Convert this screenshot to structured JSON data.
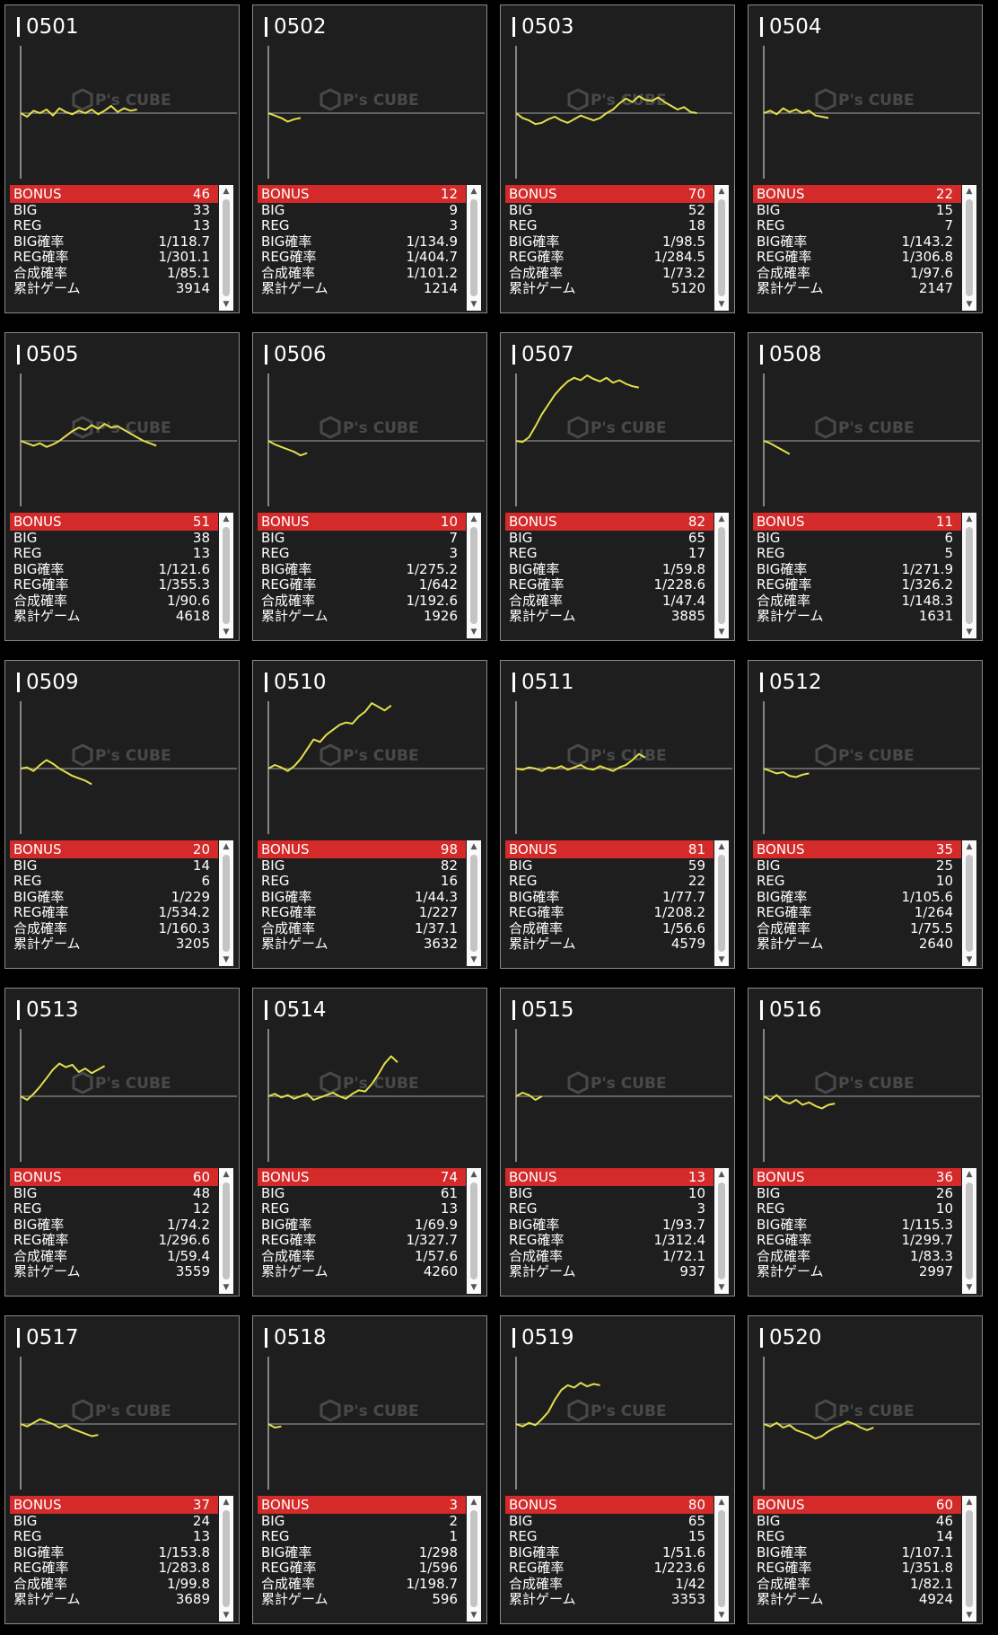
{
  "labels": {
    "bonus": "BONUS",
    "big": "BIG",
    "reg": "REG",
    "big_rate": "BIG確率",
    "reg_rate": "REG確率",
    "combined_rate": "合成確率",
    "total_games": "累計ゲーム",
    "watermark": "P's CUBE"
  },
  "colors": {
    "bonus_bar": "#d42a2a",
    "line": "#e5e04a",
    "baseline": "#8c8c8c",
    "axis": "#c8c8c8",
    "card_bg": "#1e1e1e"
  },
  "machines": [
    {
      "id": "0501",
      "bonus": "46",
      "big": "33",
      "reg": "13",
      "big_rate": "1/118.7",
      "reg_rate": "1/301.1",
      "combined_rate": "1/85.1",
      "games": "3914",
      "graph": [
        0,
        -3,
        2,
        0,
        3,
        -2,
        4,
        1,
        -1,
        2,
        0,
        3,
        -1,
        2,
        6,
        1,
        4,
        2,
        3
      ]
    },
    {
      "id": "0502",
      "bonus": "12",
      "big": "9",
      "reg": "3",
      "big_rate": "1/134.9",
      "reg_rate": "1/404.7",
      "combined_rate": "1/101.2",
      "games": "1214",
      "graph": [
        0,
        -2,
        -4,
        -7,
        -5,
        -4
      ]
    },
    {
      "id": "0503",
      "bonus": "70",
      "big": "52",
      "reg": "18",
      "big_rate": "1/98.5",
      "reg_rate": "1/284.5",
      "combined_rate": "1/73.2",
      "games": "5120",
      "graph": [
        0,
        -4,
        -6,
        -9,
        -8,
        -5,
        -3,
        -6,
        -8,
        -5,
        -2,
        -4,
        -6,
        -4,
        0,
        3,
        8,
        12,
        9,
        14,
        11,
        10,
        13,
        9,
        6,
        3,
        5,
        1,
        0
      ]
    },
    {
      "id": "0504",
      "bonus": "22",
      "big": "15",
      "reg": "7",
      "big_rate": "1/143.2",
      "reg_rate": "1/306.8",
      "combined_rate": "1/97.6",
      "games": "2147",
      "graph": [
        0,
        2,
        -1,
        4,
        1,
        3,
        0,
        2,
        -2,
        -3,
        -4
      ]
    },
    {
      "id": "0505",
      "bonus": "51",
      "big": "38",
      "reg": "13",
      "big_rate": "1/121.6",
      "reg_rate": "1/355.3",
      "combined_rate": "1/90.6",
      "games": "4618",
      "graph": [
        0,
        -2,
        -4,
        -2,
        -5,
        -3,
        0,
        4,
        8,
        11,
        9,
        13,
        10,
        14,
        11,
        12,
        9,
        6,
        3,
        0,
        -2,
        -4
      ]
    },
    {
      "id": "0506",
      "bonus": "10",
      "big": "7",
      "reg": "3",
      "big_rate": "1/275.2",
      "reg_rate": "1/642",
      "combined_rate": "1/192.6",
      "games": "1926",
      "graph": [
        0,
        -3,
        -5,
        -7,
        -9,
        -12,
        -10
      ]
    },
    {
      "id": "0507",
      "bonus": "82",
      "big": "65",
      "reg": "17",
      "big_rate": "1/59.8",
      "reg_rate": "1/228.6",
      "combined_rate": "1/47.4",
      "games": "3885",
      "graph": [
        0,
        -1,
        3,
        12,
        22,
        30,
        38,
        44,
        49,
        52,
        50,
        54,
        51,
        49,
        52,
        48,
        50,
        47,
        45,
        44
      ]
    },
    {
      "id": "0508",
      "bonus": "11",
      "big": "6",
      "reg": "5",
      "big_rate": "1/271.9",
      "reg_rate": "1/326.2",
      "combined_rate": "1/148.3",
      "games": "1631",
      "graph": [
        0,
        -2,
        -5,
        -8,
        -11
      ]
    },
    {
      "id": "0509",
      "bonus": "20",
      "big": "14",
      "reg": "6",
      "big_rate": "1/229",
      "reg_rate": "1/534.2",
      "combined_rate": "1/160.3",
      "games": "3205",
      "graph": [
        0,
        1,
        -2,
        3,
        7,
        4,
        0,
        -3,
        -6,
        -8,
        -10,
        -13
      ]
    },
    {
      "id": "0510",
      "bonus": "98",
      "big": "82",
      "reg": "16",
      "big_rate": "1/44.3",
      "reg_rate": "1/227",
      "combined_rate": "1/37.1",
      "games": "3632",
      "graph": [
        0,
        3,
        1,
        -2,
        2,
        8,
        16,
        24,
        22,
        28,
        32,
        36,
        38,
        37,
        43,
        47,
        54,
        51,
        48,
        52
      ]
    },
    {
      "id": "0511",
      "bonus": "81",
      "big": "59",
      "reg": "22",
      "big_rate": "1/77.7",
      "reg_rate": "1/208.2",
      "combined_rate": "1/56.6",
      "games": "4579",
      "graph": [
        0,
        -1,
        1,
        0,
        -2,
        1,
        0,
        2,
        -1,
        1,
        3,
        0,
        -1,
        2,
        0,
        -2,
        1,
        3,
        7,
        12,
        9
      ]
    },
    {
      "id": "0512",
      "bonus": "35",
      "big": "25",
      "reg": "10",
      "big_rate": "1/105.6",
      "reg_rate": "1/264",
      "combined_rate": "1/75.5",
      "games": "2640",
      "graph": [
        0,
        -2,
        -4,
        -3,
        -6,
        -7,
        -5,
        -4
      ]
    },
    {
      "id": "0513",
      "bonus": "60",
      "big": "48",
      "reg": "12",
      "big_rate": "1/74.2",
      "reg_rate": "1/296.6",
      "combined_rate": "1/59.4",
      "games": "3559",
      "graph": [
        0,
        -3,
        2,
        8,
        15,
        22,
        27,
        24,
        26,
        20,
        23,
        19,
        22,
        25
      ]
    },
    {
      "id": "0514",
      "bonus": "74",
      "big": "61",
      "reg": "13",
      "big_rate": "1/69.9",
      "reg_rate": "1/327.7",
      "combined_rate": "1/57.6",
      "games": "4260",
      "graph": [
        0,
        2,
        -1,
        1,
        -2,
        0,
        2,
        -3,
        -1,
        1,
        3,
        0,
        -2,
        2,
        5,
        4,
        10,
        18,
        27,
        33,
        28
      ]
    },
    {
      "id": "0515",
      "bonus": "13",
      "big": "10",
      "reg": "3",
      "big_rate": "1/93.7",
      "reg_rate": "1/312.4",
      "combined_rate": "1/72.1",
      "games": "937",
      "graph": [
        0,
        3,
        1,
        -3,
        0
      ]
    },
    {
      "id": "0516",
      "bonus": "36",
      "big": "26",
      "reg": "10",
      "big_rate": "1/115.3",
      "reg_rate": "1/299.7",
      "combined_rate": "1/83.3",
      "games": "2997",
      "graph": [
        0,
        -3,
        1,
        -4,
        -6,
        -3,
        -7,
        -5,
        -8,
        -10,
        -7,
        -6
      ]
    },
    {
      "id": "0517",
      "bonus": "37",
      "big": "24",
      "reg": "13",
      "big_rate": "1/153.8",
      "reg_rate": "1/283.8",
      "combined_rate": "1/99.8",
      "games": "3689",
      "graph": [
        0,
        -2,
        1,
        4,
        2,
        0,
        -3,
        -1,
        -4,
        -6,
        -8,
        -10,
        -9
      ]
    },
    {
      "id": "0518",
      "bonus": "3",
      "big": "2",
      "reg": "1",
      "big_rate": "1/298",
      "reg_rate": "1/596",
      "combined_rate": "1/198.7",
      "games": "596",
      "graph": [
        0,
        -3,
        -2
      ]
    },
    {
      "id": "0519",
      "bonus": "80",
      "big": "65",
      "reg": "15",
      "big_rate": "1/51.6",
      "reg_rate": "1/223.6",
      "combined_rate": "1/42",
      "games": "3353",
      "graph": [
        0,
        -2,
        1,
        -1,
        4,
        10,
        20,
        28,
        32,
        30,
        34,
        31,
        33,
        32
      ]
    },
    {
      "id": "0520",
      "bonus": "60",
      "big": "46",
      "reg": "14",
      "big_rate": "1/107.1",
      "reg_rate": "1/351.8",
      "combined_rate": "1/82.1",
      "games": "4924",
      "graph": [
        0,
        -2,
        1,
        -3,
        -1,
        -5,
        -7,
        -9,
        -12,
        -10,
        -6,
        -3,
        -1,
        2,
        0,
        -3,
        -5,
        -3
      ]
    }
  ]
}
